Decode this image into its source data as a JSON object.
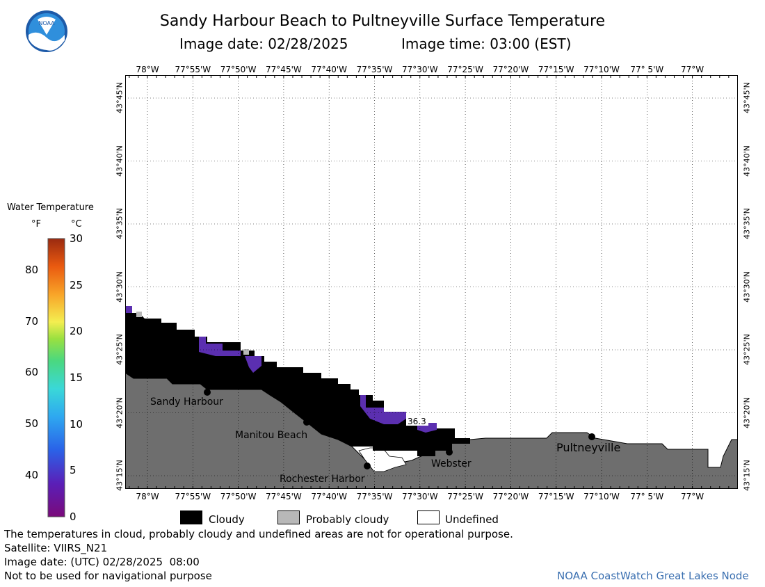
{
  "header": {
    "title": "Sandy Harbour Beach to Pultneyville Surface Temperature",
    "date_label": "Image date: 02/28/2025",
    "time_label": "Image time: 03:00 (EST)"
  },
  "logo": {
    "text": "NOAA"
  },
  "colorbar": {
    "title": "Water Temperature",
    "unit_f": "°F",
    "unit_c": "°C",
    "f_ticks": [
      "80",
      "70",
      "60",
      "50",
      "40"
    ],
    "c_ticks": [
      "30",
      "25",
      "20",
      "15",
      "10",
      "5",
      "0"
    ]
  },
  "map": {
    "lon_labels": [
      "78°W",
      "77°55'W",
      "77°50'W",
      "77°45'W",
      "77°40'W",
      "77°35'W",
      "77°30'W",
      "77°25'W",
      "77°20'W",
      "77°15'W",
      "77°10'W",
      "77° 5'W",
      "77°W"
    ],
    "lat_labels": [
      "43°45'N",
      "43°40'N",
      "43°35'N",
      "43°30'N",
      "43°25'N",
      "43°20'N",
      "43°15'N"
    ],
    "places": {
      "sandy_harbour": "Sandy Harbour",
      "manitou_beach": "Manitou Beach",
      "rochester_harbor": "Rochester Harbor",
      "webster": "Webster",
      "pultneyville": "Pultneyville"
    },
    "temp_label": "36.3",
    "colors": {
      "land": "#6e6e6e",
      "cloud": "#000000",
      "water_cold": "#5b2fb0",
      "probably_cloudy": "#b8b8b8"
    }
  },
  "legend": {
    "cloudy": "Cloudy",
    "probably_cloudy": "Probably cloudy",
    "undefined": "Undefined"
  },
  "footer": {
    "disclaimer": "The temperatures in cloud, probably cloudy and undefined areas are not for operational purpose.",
    "satellite": "Satellite: VIIRS_N21",
    "utc_date": "Image date: (UTC) 02/28/2025  08:00",
    "nav_warning": "Not to be used for navigational purpose",
    "credit": "NOAA CoastWatch Great Lakes Node"
  }
}
